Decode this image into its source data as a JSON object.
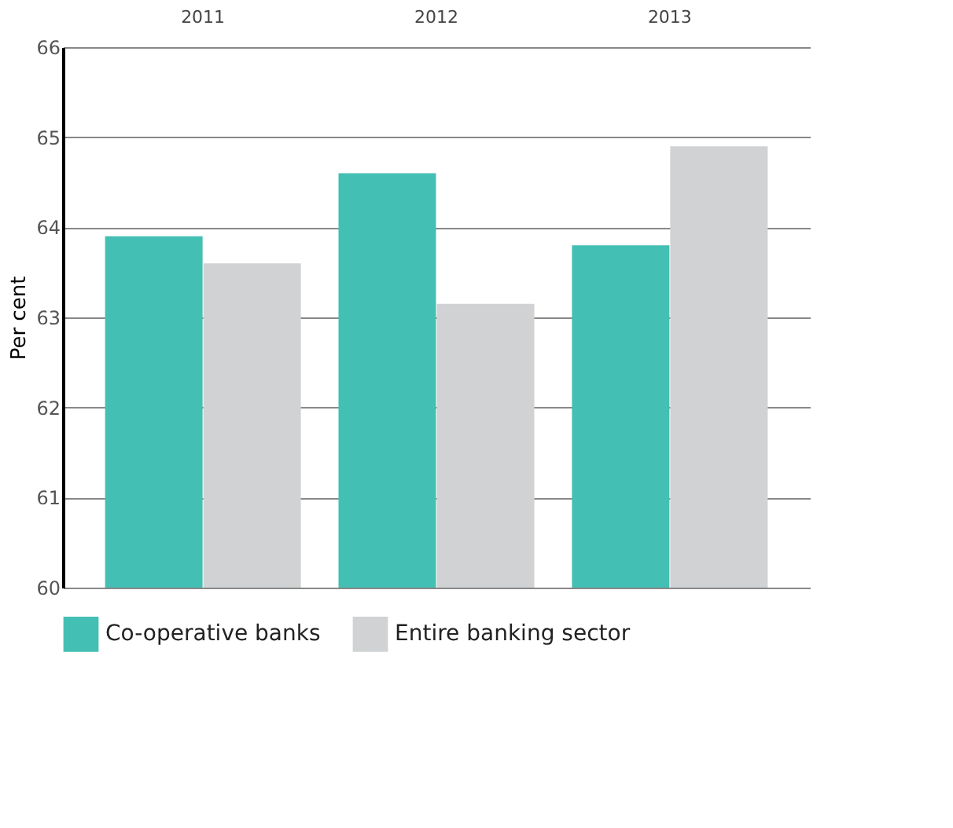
{
  "chart_data": {
    "type": "bar",
    "categories": [
      "2011",
      "2012",
      "2013"
    ],
    "ylabel": "Per cent",
    "series": [
      {
        "name": "Co-operative banks",
        "color": "#44bfb3",
        "values": [
          63.9,
          64.6,
          63.8
        ]
      },
      {
        "name": "Entire banking sector",
        "color": "#d1d2d4",
        "values": [
          63.6,
          63.15,
          64.9
        ]
      }
    ],
    "ylim": [
      60,
      66
    ],
    "yticks": [
      60,
      61,
      62,
      63,
      64,
      65,
      66
    ],
    "grid": "y",
    "legend": "bottom"
  }
}
